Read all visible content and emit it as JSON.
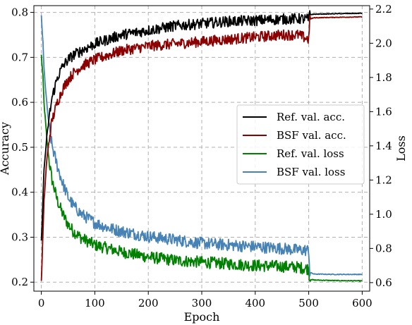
{
  "chart_data": {
    "type": "line",
    "xlabel": "Epoch",
    "ylabel_left": "Accuracy",
    "ylabel_right": "Loss",
    "xlim": [
      -14,
      614
    ],
    "ylim_left": [
      0.18,
      0.815
    ],
    "ylim_right": [
      0.55,
      2.22
    ],
    "x_ticks": [
      0,
      100,
      200,
      300,
      400,
      500,
      600
    ],
    "y_ticks_left": [
      0.2,
      0.3,
      0.4,
      0.5,
      0.6,
      0.7,
      0.8
    ],
    "y_ticks_right": [
      0.6,
      0.8,
      1.0,
      1.2,
      1.4,
      1.6,
      1.8,
      2.0,
      2.2
    ],
    "grid": true,
    "legend_position": "center-right",
    "series": [
      {
        "name": "Ref. val. acc.",
        "axis": "left",
        "color": "#000000",
        "x": [
          0,
          5,
          10,
          15,
          20,
          30,
          40,
          50,
          60,
          75,
          100,
          125,
          150,
          200,
          250,
          300,
          350,
          400,
          450,
          480,
          500,
          502,
          510,
          550,
          600
        ],
        "y": [
          0.29,
          0.45,
          0.52,
          0.57,
          0.61,
          0.655,
          0.68,
          0.695,
          0.705,
          0.715,
          0.73,
          0.74,
          0.75,
          0.76,
          0.77,
          0.775,
          0.78,
          0.782,
          0.785,
          0.786,
          0.785,
          0.795,
          0.796,
          0.797,
          0.798
        ]
      },
      {
        "name": "BSF val. acc.",
        "axis": "left",
        "color": "#8b0000",
        "x": [
          0,
          5,
          10,
          15,
          20,
          30,
          40,
          50,
          60,
          75,
          100,
          125,
          150,
          200,
          250,
          300,
          350,
          400,
          450,
          480,
          500,
          502,
          510,
          550,
          600
        ],
        "y": [
          0.2,
          0.38,
          0.47,
          0.52,
          0.56,
          0.6,
          0.63,
          0.65,
          0.665,
          0.68,
          0.695,
          0.705,
          0.715,
          0.725,
          0.73,
          0.735,
          0.74,
          0.745,
          0.75,
          0.75,
          0.74,
          0.785,
          0.788,
          0.789,
          0.79
        ]
      },
      {
        "name": "Ref. val. loss",
        "axis": "right",
        "color": "#008000",
        "x": [
          0,
          3,
          5,
          10,
          15,
          20,
          30,
          40,
          50,
          60,
          75,
          100,
          125,
          150,
          200,
          250,
          300,
          350,
          400,
          450,
          480,
          500,
          502,
          510,
          550,
          600
        ],
        "y": [
          1.93,
          1.8,
          1.65,
          1.45,
          1.3,
          1.2,
          1.08,
          1.0,
          0.94,
          0.9,
          0.86,
          0.82,
          0.8,
          0.78,
          0.75,
          0.73,
          0.72,
          0.71,
          0.7,
          0.695,
          0.69,
          0.68,
          0.62,
          0.615,
          0.612,
          0.61
        ]
      },
      {
        "name": "BSF val. loss",
        "axis": "right",
        "color": "#4682b4",
        "x": [
          0,
          3,
          5,
          10,
          15,
          20,
          30,
          40,
          50,
          60,
          75,
          100,
          125,
          150,
          200,
          250,
          300,
          350,
          400,
          450,
          480,
          500,
          502,
          510,
          550,
          600
        ],
        "y": [
          2.16,
          2.0,
          1.85,
          1.65,
          1.5,
          1.4,
          1.28,
          1.18,
          1.1,
          1.05,
          1.0,
          0.95,
          0.92,
          0.9,
          0.87,
          0.85,
          0.83,
          0.82,
          0.81,
          0.8,
          0.79,
          0.79,
          0.66,
          0.65,
          0.648,
          0.648
        ]
      }
    ]
  }
}
